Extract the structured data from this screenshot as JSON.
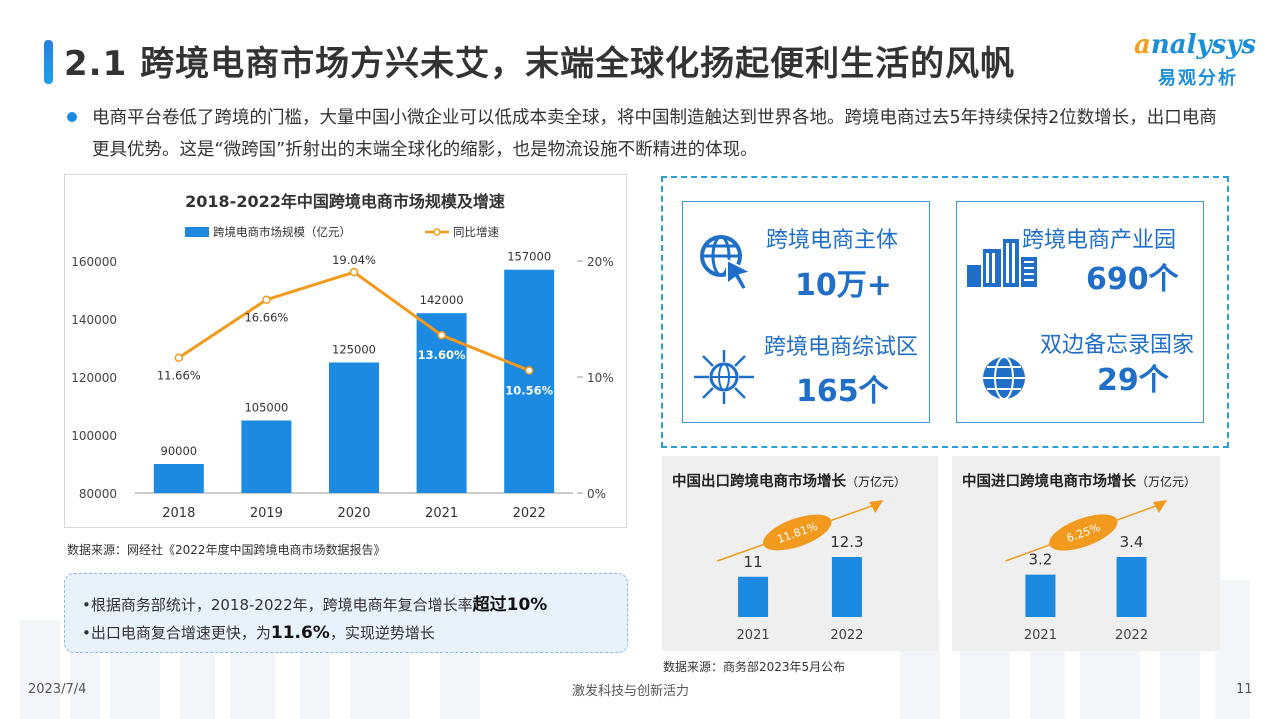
{
  "header": {
    "title": "2.1 跨境电商市场方兴未艾，末端全球化扬起便利生活的风帆",
    "logo_en_first": "a",
    "logo_en_rest": "nalysys",
    "logo_cn": "易观分析"
  },
  "intro_text": "电商平台卷低了跨境的门槛，大量中国小微企业可以低成本卖全球，将中国制造触达到世界各地。跨境电商过去5年持续保持2位数增长，出口电商更具优势。这是“微跨国”折射出的末端全球化的缩影，也是物流设施不断精进的体现。",
  "colors": {
    "bar": "#1b8ae0",
    "line": "#f29a1e",
    "title": "#1f6fc8"
  },
  "chart_data": [
    {
      "type": "bar",
      "title": "2018-2022年中国跨境电商市场规模及增速",
      "categories": [
        "2018",
        "2019",
        "2020",
        "2021",
        "2022"
      ],
      "series": [
        {
          "name": "跨境电商市场规模（亿元）",
          "type": "bar",
          "values": [
            90000,
            105000,
            125000,
            142000,
            157000
          ],
          "labels": [
            "90000",
            "105000",
            "125000",
            "142000",
            "157000"
          ]
        },
        {
          "name": "同比增速",
          "type": "line",
          "values": [
            11.66,
            16.66,
            19.04,
            13.6,
            10.56
          ],
          "labels": [
            "11.66%",
            "16.66%",
            "19.04%",
            "13.60%",
            "10.56%"
          ]
        }
      ],
      "ylim": [
        80000,
        160000
      ],
      "yticks": [
        "80000",
        "100000",
        "120000",
        "140000",
        "160000"
      ],
      "y2lim": [
        0,
        20
      ],
      "y2ticks": [
        "0%",
        "10%",
        "20%"
      ],
      "legend": "top"
    },
    {
      "type": "bar",
      "title": "中国出口跨境电商市场增长",
      "unit": "（万亿元）",
      "categories": [
        "2021",
        "2022"
      ],
      "values": [
        11,
        12.3
      ],
      "labels": [
        "11",
        "12.3"
      ],
      "growth": "11.81%"
    },
    {
      "type": "bar",
      "title": "中国进口跨境电商市场增长",
      "unit": "（万亿元）",
      "categories": [
        "2021",
        "2022"
      ],
      "values": [
        3.2,
        3.4
      ],
      "labels": [
        "3.2",
        "3.4"
      ],
      "growth": "6.25%"
    }
  ],
  "source1": "数据来源：网经社《2022年度中国跨境电商市场数据报告》",
  "notes": {
    "n1_pre": "•根据商务部统计，2018-2022年，跨境电商年复合增长率",
    "n1_bold": "超过10%",
    "n2_pre": "•出口电商复合增速更快，为",
    "n2_bold": "11.6%",
    "n2_post": "，实现逆势增长"
  },
  "cards": [
    {
      "title": "跨境电商主体",
      "value": "10万+",
      "icon": "globe-cursor-icon"
    },
    {
      "title": "跨境电商综试区",
      "value": "165个",
      "icon": "globe-network-icon"
    },
    {
      "title": "跨境电商产业园",
      "value": "690个",
      "icon": "buildings-icon"
    },
    {
      "title": "双边备忘录国家",
      "value": "29个",
      "icon": "globe-icon"
    }
  ],
  "source2": "数据来源：商务部2023年5月公布",
  "footer": {
    "date": "2023/7/4",
    "slogan": "激发科技与创新活力",
    "page": "11"
  }
}
